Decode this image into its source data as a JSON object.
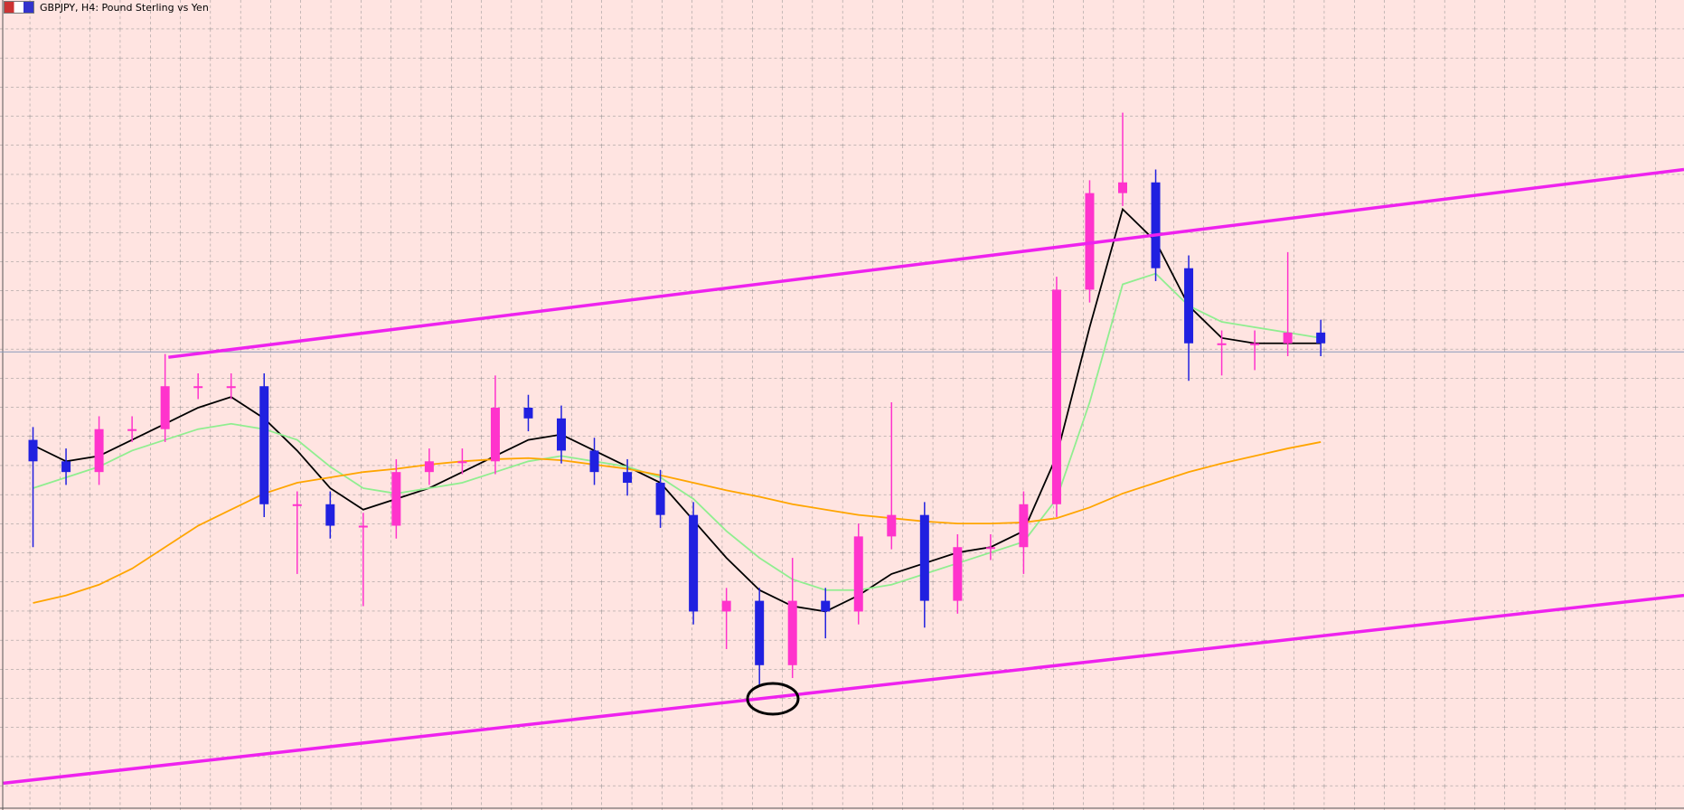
{
  "chart_data": {
    "type": "candlestick",
    "title": "GBPJPY, H4: Pound Sterling vs Yen",
    "xlim": [
      -1,
      50
    ],
    "ylim": [
      0,
      755
    ],
    "grid": true,
    "up_color": "#ff33cc",
    "down_color": "#2020e0",
    "open": [
      345,
      325,
      315,
      355,
      355,
      395,
      395,
      395,
      285,
      285,
      265,
      265,
      315,
      325,
      325,
      375,
      365,
      335,
      315,
      305,
      275,
      185,
      195,
      135,
      195,
      185,
      255,
      275,
      195,
      245,
      245,
      285,
      485,
      575,
      585,
      505,
      435,
      435,
      435,
      445
    ],
    "close": [
      325,
      315,
      355,
      355,
      395,
      395,
      395,
      285,
      285,
      265,
      265,
      315,
      325,
      325,
      375,
      365,
      335,
      315,
      305,
      275,
      185,
      195,
      135,
      195,
      185,
      255,
      275,
      195,
      245,
      245,
      285,
      485,
      575,
      585,
      505,
      435,
      435,
      435,
      445,
      435
    ],
    "high": [
      357,
      337,
      367,
      367,
      425,
      407,
      407,
      407,
      297,
      297,
      277,
      327,
      337,
      337,
      405,
      387,
      377,
      347,
      327,
      317,
      287,
      207,
      207,
      235,
      207,
      267,
      380,
      287,
      257,
      257,
      297,
      497,
      587,
      650,
      597,
      517,
      447,
      447,
      520,
      457
    ],
    "low": [
      245,
      303,
      303,
      343,
      343,
      383,
      383,
      273,
      220,
      253,
      190,
      253,
      303,
      313,
      313,
      353,
      323,
      303,
      293,
      263,
      173,
      150,
      117,
      123,
      160,
      173,
      243,
      170,
      183,
      233,
      220,
      273,
      473,
      563,
      493,
      400,
      405,
      410,
      423,
      423
    ],
    "series": [
      {
        "color": "#000000",
        "values": [
          340,
          325,
          330,
          345,
          360,
          375,
          385,
          365,
          335,
          300,
          280,
          290,
          300,
          315,
          330,
          345,
          350,
          335,
          320,
          305,
          270,
          235,
          205,
          190,
          185,
          200,
          220,
          230,
          240,
          245,
          260,
          330,
          450,
          560,
          530,
          470,
          440,
          435,
          435,
          435
        ]
      },
      {
        "color": "#90ee90",
        "values": [
          300,
          310,
          320,
          335,
          345,
          355,
          360,
          355,
          345,
          320,
          300,
          295,
          300,
          305,
          315,
          325,
          330,
          325,
          320,
          310,
          290,
          260,
          235,
          215,
          205,
          205,
          210,
          220,
          230,
          240,
          250,
          290,
          380,
          490,
          500,
          470,
          455,
          450,
          445,
          440
        ]
      },
      {
        "color": "#ffa500",
        "values": [
          193,
          200,
          210,
          225,
          245,
          265,
          280,
          295,
          305,
          310,
          315,
          318,
          322,
          325,
          327,
          328,
          326,
          322,
          318,
          312,
          305,
          298,
          292,
          285,
          280,
          275,
          272,
          269,
          267,
          267,
          268,
          272,
          282,
          295,
          305,
          315,
          323,
          330,
          337,
          343
        ]
      }
    ],
    "trendlines": [
      {
        "color": "#ee22ee",
        "x": [
          4.1,
          50
        ],
        "y": [
          422,
          597
        ]
      },
      {
        "color": "#ee22ee",
        "x": [
          -0.9,
          50
        ],
        "y": [
          25,
          200
        ]
      }
    ],
    "price_line": {
      "color": "#8899bb",
      "value": 427
    }
  }
}
